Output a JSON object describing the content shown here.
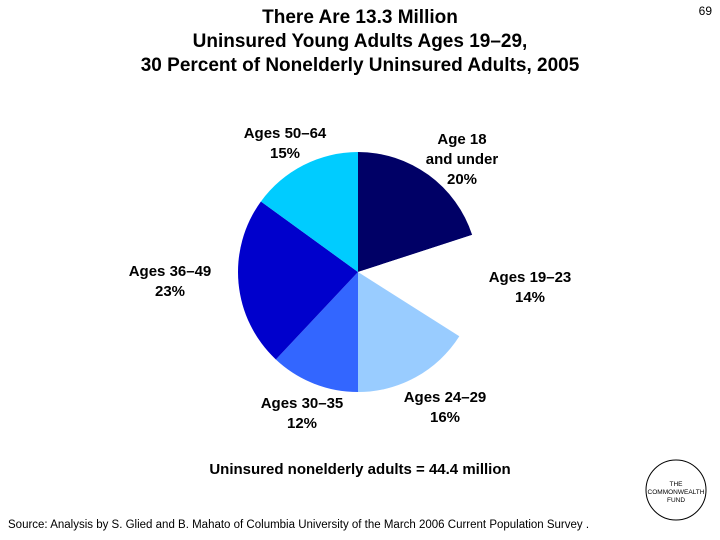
{
  "page_number": "69",
  "chart_data": {
    "type": "pie",
    "title": "There Are 13.3 Million\nUninsured Young Adults Ages 19–29,\n30 Percent of Nonelderly Uninsured Adults, 2005",
    "categories": [
      "Age 18\nand under",
      "Ages 19–23",
      "Ages 24–29",
      "Ages 30–35",
      "Ages 36–49",
      "Ages 50–64"
    ],
    "values": [
      20,
      14,
      16,
      12,
      23,
      15
    ],
    "value_labels": [
      "20%",
      "14%",
      "16%",
      "12%",
      "23%",
      "15%"
    ],
    "colors": [
      "#000066",
      "#ffffff",
      "#99ccff",
      "#3366ff",
      "#0000cc",
      "#00ccff"
    ],
    "note": "Uninsured nonelderly adults = 44.4 million"
  },
  "source": "Source: Analysis by S. Glied and B. Mahato of Columbia University of the March 2006 Current Population Survey .",
  "logo": "THE\nCOMMONWEALTH\nFUND"
}
